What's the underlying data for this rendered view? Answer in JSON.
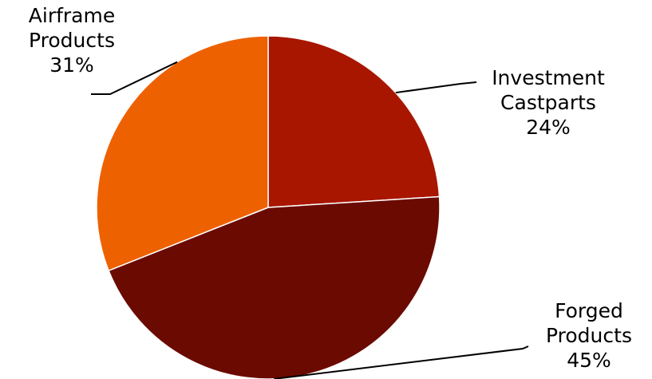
{
  "chart_data": {
    "type": "pie",
    "categories": [
      "Investment Castparts",
      "Forged Products",
      "Airframe Products"
    ],
    "values": [
      24,
      45,
      31
    ],
    "slices": [
      {
        "name": "Investment Castparts",
        "line1": "Investment",
        "line2": "Castparts",
        "pct": "24%",
        "value": 24,
        "color": "#A81600"
      },
      {
        "name": "Forged Products",
        "line1": "Forged",
        "line2": "Products",
        "pct": "45%",
        "value": 45,
        "color": "#6B0A00"
      },
      {
        "name": "Airframe Products",
        "line1": "Airframe",
        "line2": "Products",
        "pct": "31%",
        "value": 31,
        "color": "#EE6100"
      }
    ],
    "start": "12 o'clock, clockwise",
    "legend": "none",
    "data_labels": "outside with leader lines"
  }
}
